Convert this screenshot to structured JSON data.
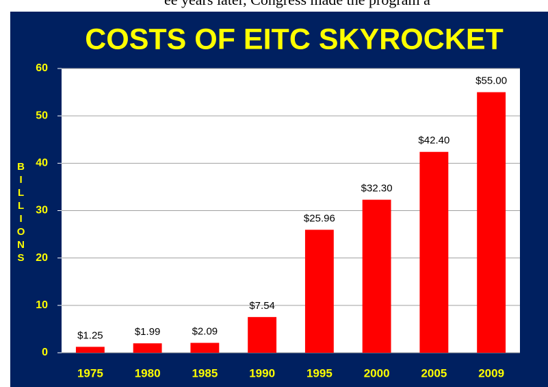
{
  "caption": "ee years later, Congress made the program a",
  "chart_data": {
    "type": "bar",
    "title": "COSTS OF EITC SKYROCKET",
    "y_label": "BILLIONS",
    "categories": [
      "1975",
      "1980",
      "1985",
      "1990",
      "1995",
      "2000",
      "2005",
      "2009"
    ],
    "values": [
      1.25,
      1.99,
      2.09,
      7.54,
      25.96,
      32.3,
      42.4,
      55.0
    ],
    "value_labels": [
      "$1.25",
      "$1.99",
      "$2.09",
      "$7.54",
      "$25.96",
      "$32.30",
      "$42.40",
      "$55.00"
    ],
    "color": "#ff0000",
    "ylim": [
      0,
      60
    ],
    "yticks": [
      0,
      10,
      20,
      30,
      40,
      50,
      60
    ],
    "grid": true
  }
}
